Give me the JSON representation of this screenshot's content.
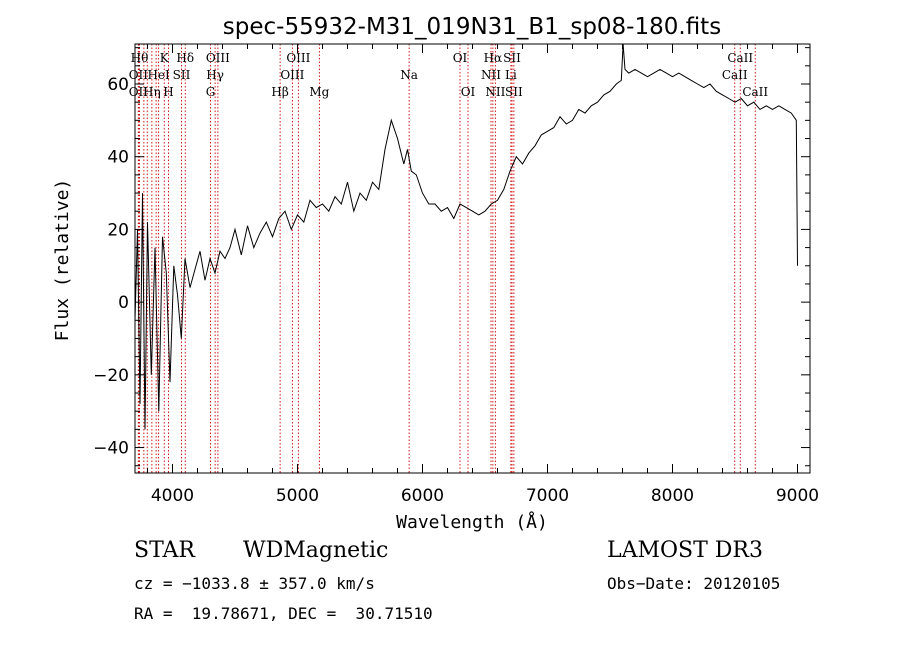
{
  "chart_data": {
    "type": "line",
    "title": "spec-55932-M31_019N31_B1_sp08-180.fits",
    "xlabel": "Wavelength (Å)",
    "ylabel": "Flux (relative)",
    "xlim": [
      3700,
      9100
    ],
    "ylim": [
      -47,
      71
    ],
    "xticks": [
      4000,
      5000,
      6000,
      7000,
      8000,
      9000
    ],
    "yticks": [
      -40,
      -20,
      0,
      20,
      40,
      60
    ],
    "grid": false,
    "series": [
      {
        "x": [
          3700,
          3720,
          3740,
          3760,
          3780,
          3800,
          3830,
          3860,
          3890,
          3920,
          3950,
          3980,
          4010,
          4040,
          4070,
          4100,
          4140,
          4180,
          4220,
          4260,
          4300,
          4340,
          4380,
          4420,
          4460,
          4500,
          4550,
          4600,
          4650,
          4700,
          4750,
          4800,
          4850,
          4900,
          4950,
          5000,
          5050,
          5100,
          5150,
          5200,
          5250,
          5300,
          5350,
          5400,
          5450,
          5500,
          5550,
          5600,
          5650,
          5700,
          5750,
          5800,
          5850,
          5880,
          5910,
          5950,
          6000,
          6050,
          6100,
          6150,
          6200,
          6250,
          6300,
          6350,
          6400,
          6450,
          6500,
          6550,
          6600,
          6650,
          6700,
          6750,
          6800,
          6850,
          6900,
          6950,
          7000,
          7050,
          7100,
          7150,
          7200,
          7250,
          7300,
          7350,
          7400,
          7450,
          7500,
          7550,
          7590,
          7605,
          7620,
          7650,
          7700,
          7750,
          7800,
          7850,
          7900,
          7950,
          8000,
          8050,
          8100,
          8150,
          8200,
          8250,
          8300,
          8350,
          8400,
          8450,
          8500,
          8550,
          8600,
          8650,
          8700,
          8750,
          8800,
          8850,
          8900,
          8950,
          8990,
          9000
        ],
        "values": [
          -5,
          20,
          -28,
          30,
          -35,
          22,
          -20,
          15,
          -30,
          18,
          8,
          -22,
          10,
          2,
          -10,
          12,
          4,
          9,
          14,
          6,
          12,
          8,
          14,
          12,
          15,
          20,
          13,
          21,
          15,
          19,
          22,
          18,
          23,
          25,
          20,
          24,
          22,
          28,
          26,
          27,
          25,
          29,
          27,
          33,
          25,
          30,
          28,
          33,
          31,
          42,
          50,
          45,
          38,
          42,
          36,
          35,
          30,
          27,
          27,
          25,
          26,
          23,
          27,
          26,
          25,
          24,
          25,
          27,
          28,
          31,
          36,
          40,
          38,
          41,
          43,
          46,
          47,
          48,
          51,
          49,
          50,
          53,
          52,
          54,
          55,
          57,
          58,
          60,
          61,
          72,
          64,
          63,
          64,
          63,
          62,
          63,
          64,
          63,
          62,
          63,
          62,
          61,
          60,
          59,
          60,
          58,
          57,
          56,
          55,
          56,
          54,
          55,
          53,
          54,
          53,
          54,
          53,
          52,
          50,
          10
        ]
      }
    ],
    "lines": [
      {
        "x": 3736,
        "name": "Hθ",
        "row": 0
      },
      {
        "x": 3727,
        "name": "OII",
        "row": 1
      },
      {
        "x": 3727,
        "name": "OII",
        "row": 2
      },
      {
        "x": 3771,
        "name": "",
        "row": -1
      },
      {
        "x": 3798,
        "name": "",
        "row": -1
      },
      {
        "x": 3835,
        "name": "Hη",
        "row": 2
      },
      {
        "x": 3869,
        "name": "",
        "row": -1
      },
      {
        "x": 3889,
        "name": "HeI",
        "row": 1
      },
      {
        "x": 3934,
        "name": "K",
        "row": 0
      },
      {
        "x": 3968,
        "name": "H",
        "row": 2
      },
      {
        "x": 4072,
        "name": "SII",
        "row": 1
      },
      {
        "x": 4102,
        "name": "Hδ",
        "row": 0
      },
      {
        "x": 4304,
        "name": "G",
        "row": 2
      },
      {
        "x": 4341,
        "name": "Hγ",
        "row": 1
      },
      {
        "x": 4363,
        "name": "OIII",
        "row": 0
      },
      {
        "x": 4861,
        "name": "Hβ",
        "row": 2
      },
      {
        "x": 4959,
        "name": "OIII",
        "row": 1
      },
      {
        "x": 5007,
        "name": "OIII",
        "row": 0
      },
      {
        "x": 5175,
        "name": "Mg",
        "row": 2
      },
      {
        "x": 5893,
        "name": "Na",
        "row": 1
      },
      {
        "x": 6300,
        "name": "OI",
        "row": 0
      },
      {
        "x": 6364,
        "name": "OI",
        "row": 2
      },
      {
        "x": 6548,
        "name": "NII",
        "row": 1
      },
      {
        "x": 6563,
        "name": "Hα",
        "row": 0
      },
      {
        "x": 6583,
        "name": "NII",
        "row": 2
      },
      {
        "x": 6707,
        "name": "Li",
        "row": 1
      },
      {
        "x": 6716,
        "name": "SII",
        "row": 0
      },
      {
        "x": 6731,
        "name": "SII",
        "row": 2
      },
      {
        "x": 8498,
        "name": "CaII",
        "row": 1
      },
      {
        "x": 8542,
        "name": "CaII",
        "row": 0
      },
      {
        "x": 8662,
        "name": "CaII",
        "row": 2
      }
    ]
  },
  "info": {
    "object_class": "STAR",
    "subclass": "WDMagnetic",
    "survey": "LAMOST DR3",
    "redshift": "cz = −1033.8 ± 357.0 km/s",
    "obs_date": "Obs−Date: 20120105",
    "coords": "RA =  19.78671, DEC =  30.71510"
  }
}
